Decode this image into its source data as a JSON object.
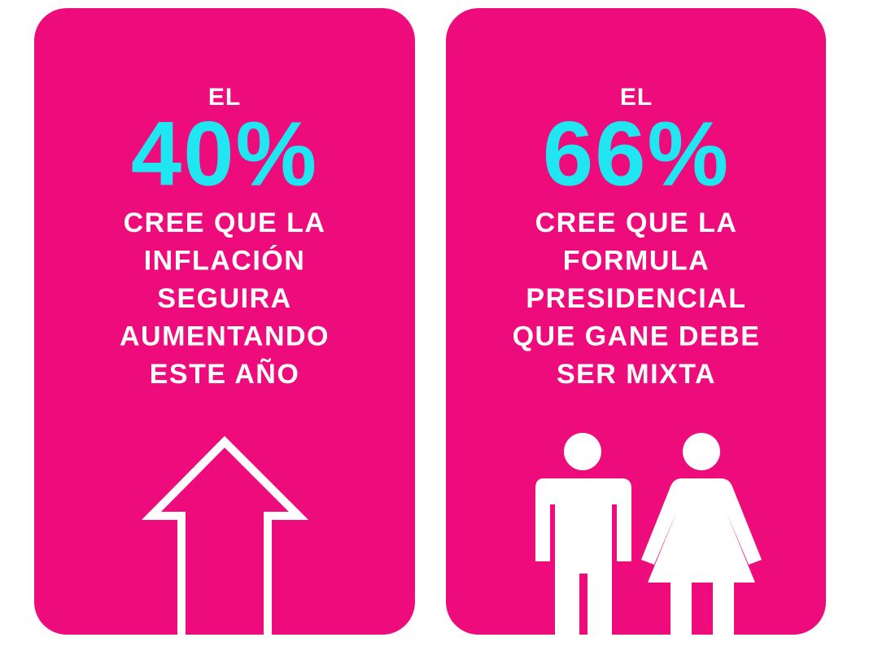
{
  "cards": [
    {
      "prefix": "EL",
      "stat": "40%",
      "lines": [
        "CREE QUE LA",
        "INFLACIÓN",
        "SEGUIRA",
        "AUMENTANDO",
        "ESTE AÑO"
      ]
    },
    {
      "prefix": "EL",
      "stat": "66%",
      "lines": [
        "CREE QUE LA",
        "FORMULA",
        "PRESIDENCIAL",
        "QUE GANE DEBE",
        "SER MIXTA"
      ]
    }
  ]
}
